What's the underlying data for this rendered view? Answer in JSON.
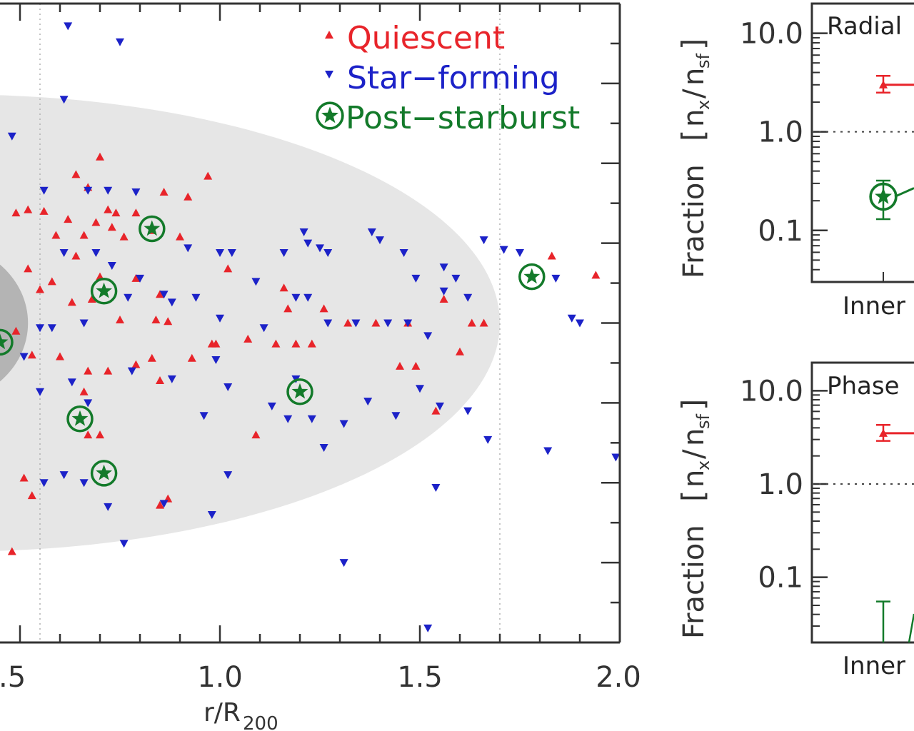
{
  "colors": {
    "quiescent": "#e8242a",
    "star_forming": "#1c22c8",
    "post_starburst": "#137a2a",
    "axis": "#333333",
    "shade_outer": "#e6e6e6",
    "shade_inner": "#b4b4b4"
  },
  "chart_data": [
    {
      "type": "scatter",
      "panel": "main",
      "xlabel_main": "r/R",
      "xlabel_sub": "200",
      "ylabel": "",
      "xlim": [
        0.45,
        2.0
      ],
      "ylim": [
        -2.0,
        2.0
      ],
      "x_tick_labels": [
        {
          "value": 0.5,
          "label": ".5"
        },
        {
          "value": 1.0,
          "label": "1.0"
        },
        {
          "value": 1.5,
          "label": "1.5"
        },
        {
          "value": 2.0,
          "label": "2.0"
        }
      ],
      "reference_lines_x": [
        0.55,
        1.7
      ],
      "shaded_regions": [
        {
          "name": "outer",
          "center_x": 0.35,
          "center_y": 0.0,
          "radius_x": 1.35,
          "radius_y": 1.43
        },
        {
          "name": "inner",
          "center_x": 0.3,
          "center_y": 0.0,
          "radius_x": 0.22,
          "radius_y": 0.5
        }
      ],
      "legend": [
        {
          "label": "Quiescent",
          "series": "quiescent"
        },
        {
          "label": "Star−forming",
          "series": "star_forming"
        },
        {
          "label": "Post−starburst",
          "series": "post_starburst"
        }
      ],
      "series": [
        {
          "name": "Quiescent",
          "key": "quiescent",
          "marker": "triangle-up",
          "points": [
            [
              0.49,
              0.69
            ],
            [
              0.52,
              0.71
            ],
            [
              0.56,
              0.7
            ],
            [
              0.62,
              0.65
            ],
            [
              0.59,
              0.55
            ],
            [
              0.66,
              0.55
            ],
            [
              0.69,
              0.63
            ],
            [
              0.73,
              0.6
            ],
            [
              0.76,
              0.54
            ],
            [
              0.74,
              0.69
            ],
            [
              0.79,
              0.69
            ],
            [
              0.72,
              0.71
            ],
            [
              0.64,
              0.93
            ],
            [
              0.67,
              0.85
            ],
            [
              0.7,
              1.04
            ],
            [
              0.86,
              0.82
            ],
            [
              0.97,
              0.92
            ],
            [
              0.92,
              0.79
            ],
            [
              0.83,
              0.58
            ],
            [
              0.9,
              0.54
            ],
            [
              0.64,
              0.42
            ],
            [
              0.7,
              0.29
            ],
            [
              0.79,
              0.28
            ],
            [
              0.85,
              0.18
            ],
            [
              0.63,
              0.13
            ],
            [
              0.68,
              0.15
            ],
            [
              0.58,
              0.26
            ],
            [
              0.52,
              0.34
            ],
            [
              0.55,
              0.21
            ],
            [
              0.75,
              0.02
            ],
            [
              0.84,
              0.02
            ],
            [
              0.87,
              0.01
            ],
            [
              0.49,
              -0.05
            ],
            [
              0.53,
              -0.2
            ],
            [
              0.6,
              -0.21
            ],
            [
              0.67,
              -0.3
            ],
            [
              0.72,
              -0.3
            ],
            [
              0.79,
              -0.26
            ],
            [
              0.83,
              -0.22
            ],
            [
              0.85,
              -0.36
            ],
            [
              0.93,
              -0.22
            ],
            [
              0.98,
              -0.13
            ],
            [
              0.99,
              -0.13
            ],
            [
              1.02,
              0.34
            ],
            [
              1.07,
              -0.1
            ],
            [
              1.14,
              -0.13
            ],
            [
              1.16,
              0.22
            ],
            [
              1.17,
              0.09
            ],
            [
              1.19,
              -0.13
            ],
            [
              1.23,
              -0.13
            ],
            [
              1.26,
              0.09
            ],
            [
              1.32,
              0.0
            ],
            [
              1.39,
              0.0
            ],
            [
              1.47,
              0.0
            ],
            [
              1.45,
              -0.27
            ],
            [
              1.49,
              -0.27
            ],
            [
              1.6,
              -0.18
            ],
            [
              1.63,
              0.0
            ],
            [
              1.66,
              0.0
            ],
            [
              1.56,
              0.15
            ],
            [
              1.54,
              -0.55
            ],
            [
              1.09,
              -0.7
            ],
            [
              0.67,
              -0.7
            ],
            [
              0.7,
              -0.7
            ],
            [
              0.66,
              -0.43
            ],
            [
              0.51,
              -0.97
            ],
            [
              0.53,
              -1.08
            ],
            [
              0.48,
              -1.43
            ],
            [
              0.87,
              -1.1
            ],
            [
              0.85,
              -1.14
            ],
            [
              1.83,
              0.42
            ],
            [
              1.94,
              0.3
            ]
          ]
        },
        {
          "name": "Star−forming",
          "key": "star_forming",
          "marker": "triangle-down",
          "points": [
            [
              0.62,
              1.86
            ],
            [
              0.75,
              1.76
            ],
            [
              0.61,
              1.4
            ],
            [
              0.48,
              1.17
            ],
            [
              0.56,
              0.83
            ],
            [
              0.67,
              0.83
            ],
            [
              0.72,
              0.83
            ],
            [
              0.79,
              0.82
            ],
            [
              0.61,
              0.44
            ],
            [
              0.69,
              0.44
            ],
            [
              0.73,
              0.36
            ],
            [
              0.8,
              0.28
            ],
            [
              0.92,
              0.47
            ],
            [
              1.0,
              0.44
            ],
            [
              0.94,
              0.16
            ],
            [
              0.86,
              0.18
            ],
            [
              1.03,
              0.44
            ],
            [
              1.09,
              0.26
            ],
            [
              1.16,
              0.44
            ],
            [
              1.25,
              0.47
            ],
            [
              1.22,
              0.5
            ],
            [
              1.27,
              0.44
            ],
            [
              1.21,
              0.57
            ],
            [
              1.38,
              0.57
            ],
            [
              1.4,
              0.52
            ],
            [
              1.46,
              0.44
            ],
            [
              1.49,
              0.28
            ],
            [
              1.56,
              0.35
            ],
            [
              1.59,
              0.28
            ],
            [
              1.66,
              0.52
            ],
            [
              1.75,
              0.44
            ],
            [
              1.71,
              0.46
            ],
            [
              1.84,
              0.28
            ],
            [
              1.88,
              0.03
            ],
            [
              1.9,
              0.0
            ],
            [
              0.55,
              -0.03
            ],
            [
              0.58,
              -0.03
            ],
            [
              0.66,
              0.0
            ],
            [
              0.77,
              0.16
            ],
            [
              0.88,
              0.13
            ],
            [
              1.0,
              0.03
            ],
            [
              1.11,
              -0.03
            ],
            [
              1.19,
              0.16
            ],
            [
              1.22,
              0.16
            ],
            [
              1.27,
              0.0
            ],
            [
              1.34,
              0.0
            ],
            [
              1.42,
              0.0
            ],
            [
              1.47,
              0.0
            ],
            [
              1.52,
              -0.08
            ],
            [
              1.56,
              0.2
            ],
            [
              1.62,
              0.16
            ],
            [
              0.51,
              -0.21
            ],
            [
              0.55,
              -0.43
            ],
            [
              0.63,
              -0.37
            ],
            [
              0.67,
              -0.5
            ],
            [
              0.78,
              -0.3
            ],
            [
              0.88,
              -0.35
            ],
            [
              0.96,
              -0.58
            ],
            [
              0.99,
              -0.23
            ],
            [
              1.02,
              -0.4
            ],
            [
              1.13,
              -0.52
            ],
            [
              1.17,
              -0.6
            ],
            [
              1.19,
              -0.35
            ],
            [
              1.23,
              -0.6
            ],
            [
              1.26,
              -0.78
            ],
            [
              1.31,
              -0.63
            ],
            [
              1.37,
              -0.49
            ],
            [
              1.44,
              -0.58
            ],
            [
              1.5,
              -0.41
            ],
            [
              1.55,
              -0.52
            ],
            [
              1.62,
              -0.55
            ],
            [
              1.67,
              -0.73
            ],
            [
              1.82,
              -0.8
            ],
            [
              1.99,
              -0.84
            ],
            [
              1.54,
              -1.03
            ],
            [
              1.02,
              -0.95
            ],
            [
              0.98,
              -1.2
            ],
            [
              0.86,
              -1.13
            ],
            [
              0.72,
              -1.15
            ],
            [
              0.61,
              -0.95
            ],
            [
              0.66,
              -1.0
            ],
            [
              0.56,
              -1.0
            ],
            [
              0.76,
              -1.38
            ],
            [
              1.31,
              -1.5
            ],
            [
              1.52,
              -1.91
            ]
          ]
        },
        {
          "name": "Post−starburst",
          "key": "post_starburst",
          "marker": "circled-star",
          "points": [
            [
              0.83,
              0.59
            ],
            [
              0.71,
              0.2
            ],
            [
              0.65,
              -0.6
            ],
            [
              0.71,
              -0.94
            ],
            [
              1.2,
              -0.43
            ],
            [
              1.78,
              0.29
            ],
            [
              0.45,
              -0.12
            ]
          ]
        }
      ]
    },
    {
      "type": "scatter",
      "panel": "top-right",
      "title": "Radial",
      "yscale": "log",
      "ylim": [
        0.03,
        20
      ],
      "ylabel": "Fraction [nₓ/nₛᶠ]",
      "ylabel_main": "Fraction",
      "ylabel_num": "n",
      "ylabel_num_sub": "x",
      "ylabel_den": "n",
      "ylabel_den_sub": "sf",
      "y_tick_labels": [
        {
          "value": 10.0,
          "label": "10.0"
        },
        {
          "value": 1.0,
          "label": "1.0"
        },
        {
          "value": 0.1,
          "label": "0.1"
        }
      ],
      "reference_line_y": 1.0,
      "x_tick_labels": [
        {
          "value": 0,
          "label": "Inner"
        }
      ],
      "series": [
        {
          "name": "Quiescent",
          "key": "quiescent",
          "points": [
            {
              "x": 0,
              "y": 3.0,
              "err_lo": 2.5,
              "err_hi": 3.7
            }
          ]
        },
        {
          "name": "Post−starburst",
          "key": "post_starburst",
          "points": [
            {
              "x": 0,
              "y": 0.22,
              "err_lo": 0.13,
              "err_hi": 0.32
            }
          ]
        }
      ]
    },
    {
      "type": "scatter",
      "panel": "bottom-right",
      "title": "Phase",
      "yscale": "log",
      "ylim": [
        0.02,
        20
      ],
      "ylabel": "Fraction [nₓ/nₛᶠ]",
      "ylabel_main": "Fraction",
      "ylabel_num": "n",
      "ylabel_num_sub": "x",
      "ylabel_den": "n",
      "ylabel_den_sub": "sf",
      "y_tick_labels": [
        {
          "value": 10.0,
          "label": "10.0"
        },
        {
          "value": 1.0,
          "label": "1.0"
        },
        {
          "value": 0.1,
          "label": "0.1"
        }
      ],
      "reference_line_y": 1.0,
      "x_tick_labels": [
        {
          "value": 0,
          "label": "Inner"
        }
      ],
      "series": [
        {
          "name": "Quiescent",
          "key": "quiescent",
          "points": [
            {
              "x": 0,
              "y": 3.5,
              "err_lo": 2.9,
              "err_hi": 4.3
            }
          ]
        },
        {
          "name": "Post−starburst",
          "key": "post_starburst",
          "points": [
            {
              "x": 0,
              "y": 0.02,
              "err_lo": 0.02,
              "err_hi": 0.055
            }
          ]
        }
      ]
    }
  ]
}
